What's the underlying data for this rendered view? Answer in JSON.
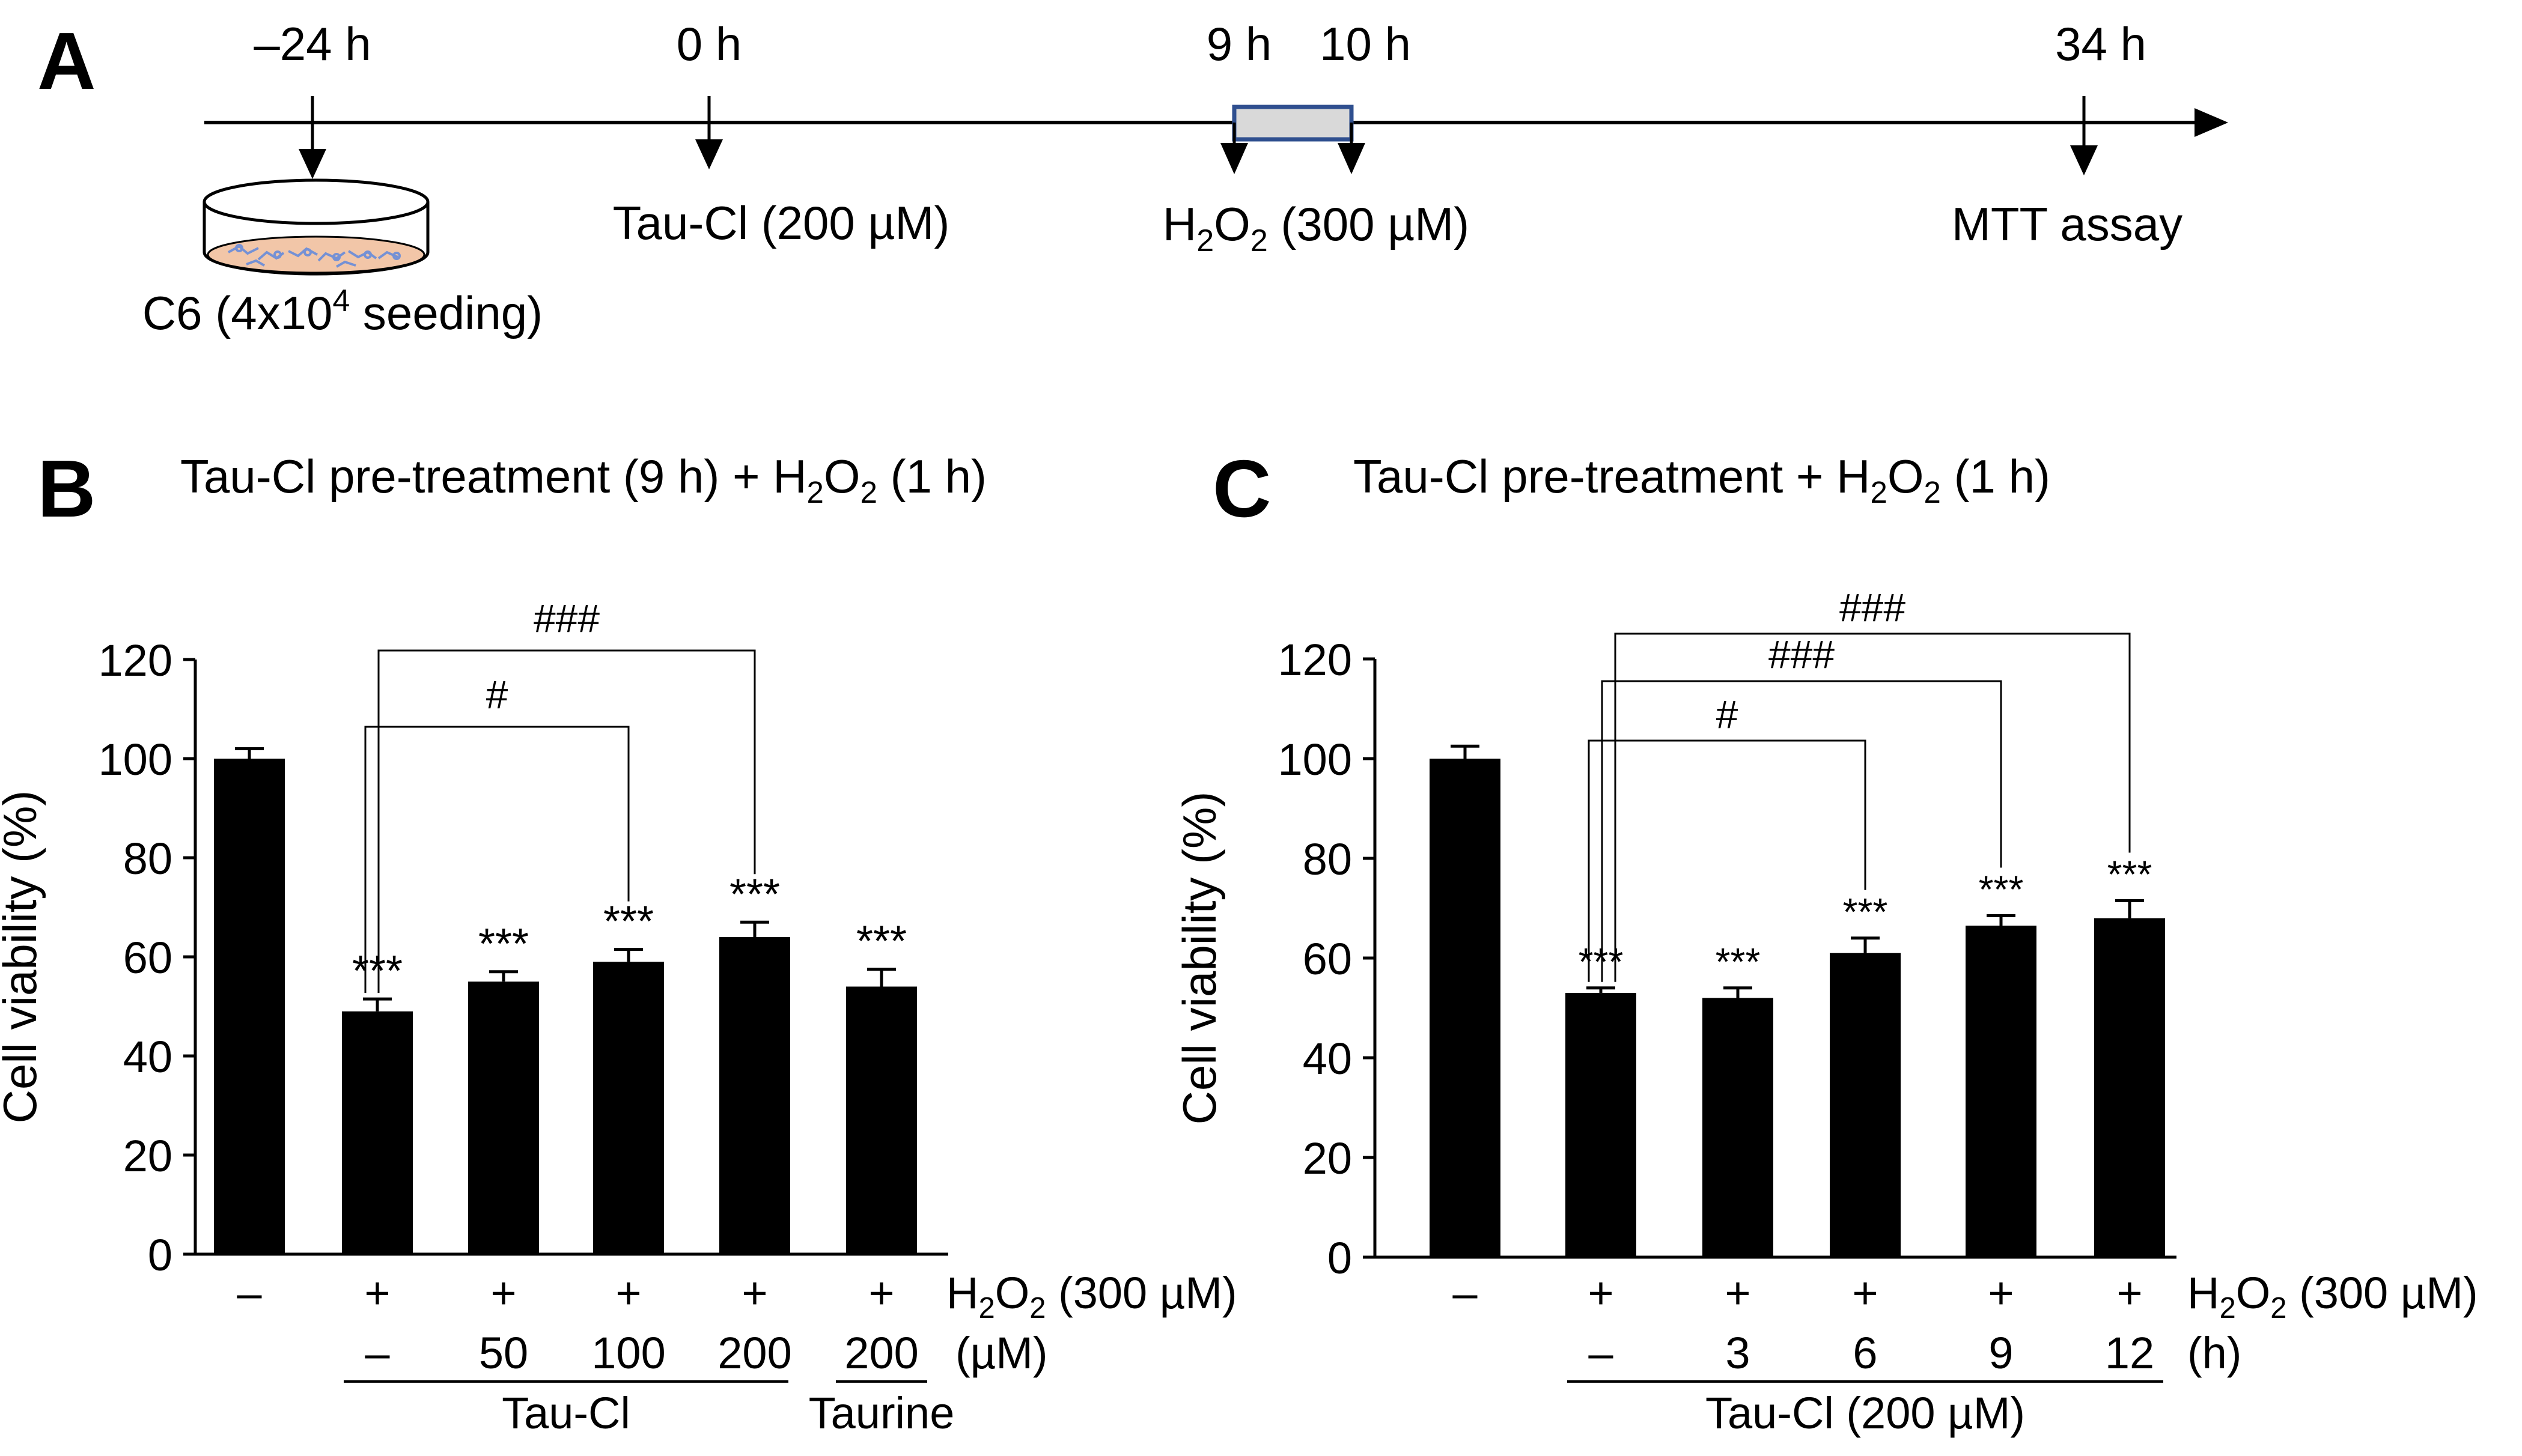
{
  "colors": {
    "ink": "#000000",
    "bar": "#000000",
    "window_fill": "#d9d9d9",
    "window_border": "#2f4f8f",
    "dish_medium": "#f2c6a8",
    "dish_cells": "#6f8fd8"
  },
  "panel_a": {
    "letter": "A",
    "dish_icon": "cell-culture-dish-icon",
    "events": [
      {
        "time": "–24 h",
        "label": "C6 (4x10",
        "sup": "4",
        "label_tail": " seeding)",
        "t": -24
      },
      {
        "time": "0 h",
        "label": "Tau-Cl (200 µM)",
        "t": 0
      },
      {
        "time": "9 h",
        "t": 9
      },
      {
        "time": "10 h",
        "t": 10
      },
      {
        "time": "34 h",
        "label": "MTT assay",
        "t": 34
      }
    ],
    "h2o2": {
      "pre": "H",
      "sub1": "2",
      "mid": "O",
      "sub2": "2",
      "post": " (300 µM)"
    }
  },
  "chart_data": [
    {
      "type": "bar",
      "panel": "B",
      "title_pre": "Tau-Cl  pre-treatment (9 h) + H",
      "title_sub1": "2",
      "title_mid": "O",
      "title_sub2": "2",
      "title_post": " (1 h)",
      "ylabel": "Cell viability (%)",
      "ylim": [
        0,
        120
      ],
      "yticks": [
        "0",
        "20",
        "40",
        "60",
        "80",
        "100",
        "120"
      ],
      "values": [
        100,
        49,
        55,
        59,
        64,
        54
      ],
      "errors": [
        2,
        2.5,
        2,
        2.5,
        3,
        3.5
      ],
      "stars": [
        "",
        "***",
        "***",
        "***",
        "***",
        "***"
      ],
      "h2o2_row": [
        "–",
        "+",
        "+",
        "+",
        "+",
        "+"
      ],
      "dose_row": [
        "",
        "–",
        "50",
        "100",
        "200",
        "200"
      ],
      "h2o2_label_pre": "H",
      "h2o2_label_sub1": "2",
      "h2o2_label_mid": "O",
      "h2o2_label_sub2": "2",
      "h2o2_label_post": " (300 µM)",
      "unit_label": "(µM)",
      "groups": [
        {
          "label": "Tau-Cl",
          "from": 1,
          "to": 4
        },
        {
          "label": "Taurine",
          "from": 5,
          "to": 5
        }
      ],
      "brackets": [
        {
          "from": 1,
          "to": 3,
          "label": "#"
        },
        {
          "from": 1,
          "to": 4,
          "label": "###"
        }
      ]
    },
    {
      "type": "bar",
      "panel": "C",
      "title_pre": "Tau-Cl  pre-treatment + H",
      "title_sub1": "2",
      "title_mid": "O",
      "title_sub2": "2",
      "title_post": " (1 h)",
      "ylabel": "Cell viability (%)",
      "ylim": [
        0,
        120
      ],
      "yticks": [
        "0",
        "20",
        "40",
        "60",
        "80",
        "100",
        "120"
      ],
      "values": [
        100,
        53,
        52,
        61,
        66.5,
        68
      ],
      "errors": [
        2.5,
        1,
        2,
        3,
        2,
        3.5
      ],
      "stars": [
        "",
        "***",
        "***",
        "***",
        "***",
        "***"
      ],
      "h2o2_row": [
        "–",
        "+",
        "+",
        "+",
        "+",
        "+"
      ],
      "dose_row": [
        "",
        "–",
        "3",
        "6",
        "9",
        "12"
      ],
      "h2o2_label_pre": "H",
      "h2o2_label_sub1": "2",
      "h2o2_label_mid": "O",
      "h2o2_label_sub2": "2",
      "h2o2_label_post": " (300 µM)",
      "unit_label": "(h)",
      "groups": [
        {
          "label": "Tau-Cl (200 µM)",
          "from": 1,
          "to": 5
        }
      ],
      "brackets": [
        {
          "from": 1,
          "to": 3,
          "label": "#"
        },
        {
          "from": 1,
          "to": 4,
          "label": "###"
        },
        {
          "from": 1,
          "to": 5,
          "label": "###"
        }
      ]
    }
  ]
}
